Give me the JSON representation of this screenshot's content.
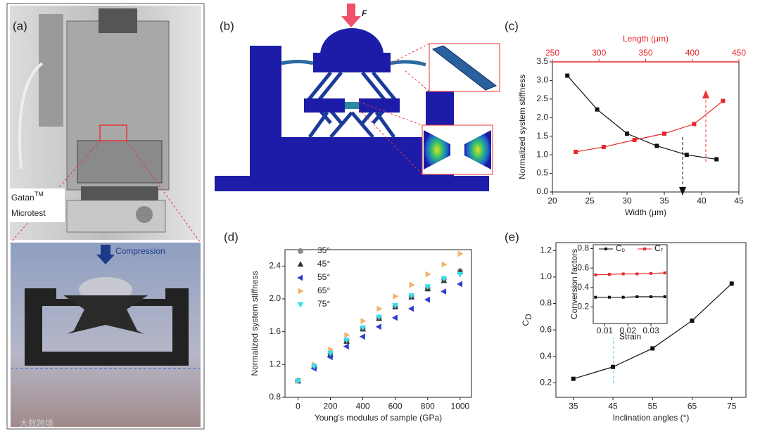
{
  "panels": {
    "a": "(a)",
    "b": "(b)",
    "c": "(c)",
    "d": "(d)",
    "e": "(e)"
  },
  "photo": {
    "brand": "Gatan",
    "brand_mark": "TM",
    "model": "Microtest",
    "compression": "Compression"
  },
  "model": {
    "force": "F"
  },
  "watermark": "大数跨境",
  "chart_data": [
    {
      "type": "line",
      "xlabel": "Width (μm)",
      "ylabel": "Normalized system stiffness",
      "xlim": [
        20,
        45
      ],
      "xticks": [
        20,
        25,
        30,
        35,
        40,
        45
      ],
      "x2label": "Length (μm)",
      "x2lim": [
        250,
        450
      ],
      "x2ticks": [
        250,
        300,
        350,
        400,
        450
      ],
      "x2color": "#e8262a",
      "ylim": [
        0,
        3.5
      ],
      "yticks": [
        0.0,
        0.5,
        1.0,
        1.5,
        2.0,
        2.5,
        3.0,
        3.5
      ],
      "ytick_labels": [
        "0.0",
        "0.5",
        "1.0",
        "1.5",
        "2.0",
        "2.5",
        "3.0",
        "3.5"
      ],
      "series": [
        {
          "color": "#111111",
          "marker": "square",
          "x": [
            22,
            26,
            30,
            34,
            38,
            42
          ],
          "values": [
            3.13,
            2.22,
            1.57,
            1.24,
            1.0,
            0.88
          ]
        },
        {
          "color": "#e8262a",
          "marker": "square",
          "axis": "x2",
          "x": [
            275,
            305,
            338,
            370,
            402,
            433
          ],
          "values": [
            1.08,
            1.21,
            1.4,
            1.57,
            1.83,
            2.45
          ]
        }
      ]
    },
    {
      "type": "scatter",
      "xlabel": "Young's modulus of sample (GPa)",
      "ylabel": "Normalized system stiffness",
      "xlim": [
        -80,
        1070
      ],
      "xticks": [
        0,
        200,
        400,
        600,
        800,
        1000
      ],
      "ylim": [
        0.8,
        2.6
      ],
      "yticks": [
        0.8,
        1.2,
        1.6,
        2.0,
        2.4
      ],
      "ytick_labels": [
        "0.8",
        "1.2",
        "1.6",
        "2.0",
        "2.4"
      ],
      "legend": "upper left",
      "x": [
        0,
        100,
        200,
        300,
        400,
        500,
        600,
        700,
        800,
        900,
        1000
      ],
      "series": [
        {
          "name": "35°",
          "color": "#8c8c8c",
          "marker": "circle",
          "values": [
            1.0,
            1.17,
            1.33,
            1.49,
            1.64,
            1.77,
            1.91,
            2.03,
            2.13,
            2.24,
            2.34
          ]
        },
        {
          "name": "45°",
          "color": "#333333",
          "marker": "triangle-up",
          "values": [
            1.0,
            1.17,
            1.32,
            1.48,
            1.63,
            1.76,
            1.9,
            2.02,
            2.12,
            2.22,
            2.33
          ]
        },
        {
          "name": "55°",
          "color": "#2b3fd1",
          "marker": "triangle-left",
          "values": [
            1.0,
            1.15,
            1.29,
            1.42,
            1.54,
            1.66,
            1.77,
            1.88,
            1.99,
            2.09,
            2.18
          ]
        },
        {
          "name": "65°",
          "color": "#f2b36b",
          "marker": "triangle-right",
          "values": [
            1.0,
            1.2,
            1.38,
            1.56,
            1.73,
            1.88,
            2.03,
            2.17,
            2.3,
            2.42,
            2.55
          ]
        },
        {
          "name": "75°",
          "color": "#33e0f0",
          "marker": "triangle-down",
          "values": [
            1.0,
            1.18,
            1.34,
            1.5,
            1.65,
            1.78,
            1.92,
            2.04,
            2.15,
            2.25,
            2.3
          ]
        }
      ]
    },
    {
      "type": "line",
      "xlabel": "Inclination angles (°)",
      "ylabel": {
        "text": "C",
        "sub": "D"
      },
      "xlim": [
        30.6,
        78.6
      ],
      "xticks": [
        35,
        45,
        55,
        65,
        75
      ],
      "ylim": [
        0.09,
        1.26
      ],
      "yticks": [
        0.2,
        0.4,
        0.6,
        0.8,
        1.0,
        1.2
      ],
      "ytick_labels": [
        "0.2",
        "0.4",
        "0.6",
        "0.8",
        "1.0",
        "1.2"
      ],
      "series": [
        {
          "color": "#111111",
          "marker": "square",
          "x": [
            35,
            45,
            55,
            65,
            75
          ],
          "values": [
            0.23,
            0.32,
            0.46,
            0.67,
            0.95
          ]
        }
      ]
    },
    {
      "type": "line",
      "xlabel": "Strain",
      "ylabel": "Conversion factors",
      "xlim": [
        0.005,
        0.037
      ],
      "xticks": [
        0.01,
        0.02,
        0.03
      ],
      "ylim": [
        0.03,
        0.84
      ],
      "yticks": [
        0.2,
        0.4,
        0.6,
        0.8
      ],
      "legend": "top",
      "series": [
        {
          "name": "C",
          "subscript": "D",
          "color": "#111111",
          "marker": "square",
          "x": [
            0.006,
            0.012,
            0.018,
            0.024,
            0.03,
            0.036
          ],
          "values": [
            0.3,
            0.3,
            0.3,
            0.305,
            0.305,
            0.305
          ]
        },
        {
          "name": "C",
          "subscript": "F",
          "color": "#e8262a",
          "marker": "square",
          "x": [
            0.006,
            0.012,
            0.018,
            0.024,
            0.03,
            0.036
          ],
          "values": [
            0.53,
            0.535,
            0.54,
            0.54,
            0.545,
            0.55
          ]
        }
      ]
    }
  ]
}
